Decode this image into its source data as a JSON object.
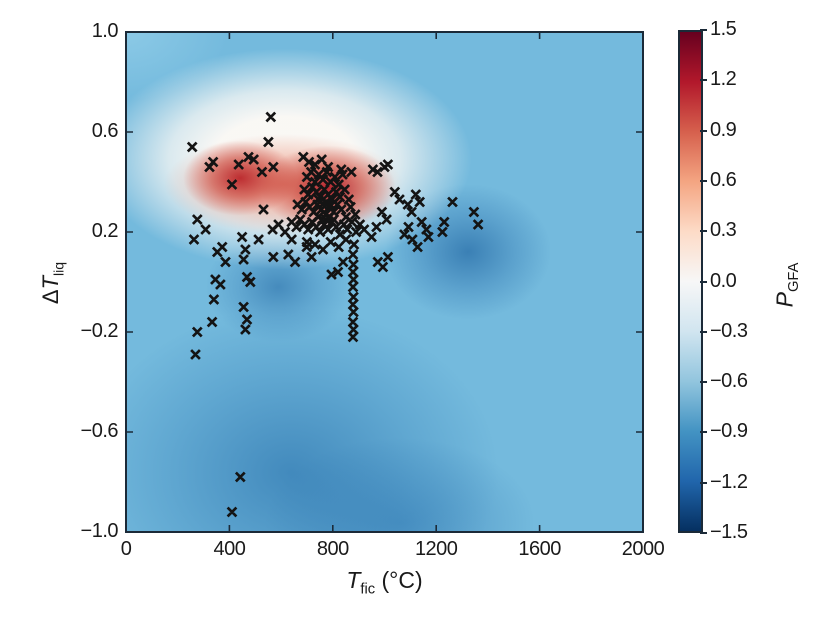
{
  "figure": {
    "kind": "matplotlib-style scientific figure",
    "background": "#ffffff"
  },
  "colors": {
    "plot_base_blue": "#74badd",
    "marker": "#141414",
    "frame": "#1b2a38",
    "text": "#1a1a1a"
  },
  "chart_data": {
    "type": "heatmap",
    "subtype": "interpolated 2D field with scatter overlay (x markers)",
    "title": "",
    "xlabel": {
      "symbol": "T",
      "sub": "fic",
      "unit": " (°C)"
    },
    "ylabel": {
      "prefix": "Δ",
      "symbol": "T",
      "sub": "liq"
    },
    "xlim": [
      0,
      2000
    ],
    "ylim": [
      -1.0,
      1.0
    ],
    "grid": false,
    "legend": "none",
    "xticks": [
      {
        "v": 0,
        "label": "0"
      },
      {
        "v": 400,
        "label": "400"
      },
      {
        "v": 800,
        "label": "800"
      },
      {
        "v": 1200,
        "label": "1200"
      },
      {
        "v": 1600,
        "label": "1600"
      },
      {
        "v": 2000,
        "label": "2000"
      }
    ],
    "yticks": [
      {
        "v": 1.0,
        "label": "1.0"
      },
      {
        "v": 0.6,
        "label": "0.6"
      },
      {
        "v": 0.2,
        "label": "0.2"
      },
      {
        "v": -0.2,
        "label": "−0.2"
      },
      {
        "v": -0.6,
        "label": "−0.6"
      },
      {
        "v": -1.0,
        "label": "−1.0"
      }
    ],
    "colorbar": {
      "symbol": "P",
      "sub": "GFA",
      "lim": [
        -1.5,
        1.5
      ],
      "position": "right",
      "colormap": "RdBu_r (red = high P_GFA, white = 0, blue = low P_GFA)",
      "ticks": [
        {
          "v": 1.5,
          "label": "1.5"
        },
        {
          "v": 1.2,
          "label": "1.2"
        },
        {
          "v": 0.9,
          "label": "0.9"
        },
        {
          "v": 0.6,
          "label": "0.6"
        },
        {
          "v": 0.3,
          "label": "0.3"
        },
        {
          "v": 0.0,
          "label": "0.0"
        },
        {
          "v": -0.3,
          "label": "−0.3"
        },
        {
          "v": -0.6,
          "label": "−0.6"
        },
        {
          "v": -0.9,
          "label": "−0.9"
        },
        {
          "v": -1.2,
          "label": "−1.2"
        },
        {
          "v": -1.5,
          "label": "−1.5"
        }
      ],
      "stops": [
        "#67001f",
        "#b2182b",
        "#d6604d",
        "#f4a582",
        "#fddbc7",
        "#f7f7f7",
        "#d1e5f0",
        "#92c5de",
        "#4393c3",
        "#2166ac",
        "#053061"
      ]
    },
    "field_description": "Red high-P_GFA blob centered near T_fic 450-1000 C at dT_liq 0.3-0.5 surrounded by white P=0 halo; dark-blue low-P lobes below the cluster (T 250-550, dT -0.2..0.1), right of it (T 1250-1500, dT 0-0.3) and across the lower-left quadrant; uniform light blue (~-0.5) elsewhere",
    "points": [
      [
        256,
        0.54
      ],
      [
        323,
        0.46
      ],
      [
        337,
        0.48
      ],
      [
        436,
        0.47
      ],
      [
        474,
        0.5
      ],
      [
        494,
        0.49
      ],
      [
        410,
        0.39
      ],
      [
        551,
        0.56
      ],
      [
        560,
        0.66
      ],
      [
        570,
        0.46
      ],
      [
        526,
        0.44
      ],
      [
        686,
        0.5
      ],
      [
        708,
        0.48
      ],
      [
        731,
        0.47
      ],
      [
        757,
        0.49
      ],
      [
        782,
        0.46
      ],
      [
        833,
        0.45
      ],
      [
        872,
        0.44
      ],
      [
        955,
        0.45
      ],
      [
        973,
        0.44
      ],
      [
        1000,
        0.46
      ],
      [
        1013,
        0.47
      ],
      [
        700,
        0.42
      ],
      [
        716,
        0.44
      ],
      [
        731,
        0.4
      ],
      [
        746,
        0.43
      ],
      [
        762,
        0.41
      ],
      [
        777,
        0.44
      ],
      [
        792,
        0.4
      ],
      [
        808,
        0.42
      ],
      [
        823,
        0.39
      ],
      [
        838,
        0.43
      ],
      [
        690,
        0.37
      ],
      [
        705,
        0.35
      ],
      [
        721,
        0.38
      ],
      [
        736,
        0.36
      ],
      [
        751,
        0.34
      ],
      [
        767,
        0.37
      ],
      [
        782,
        0.35
      ],
      [
        797,
        0.33
      ],
      [
        813,
        0.36
      ],
      [
        828,
        0.34
      ],
      [
        846,
        0.37
      ],
      [
        862,
        0.33
      ],
      [
        664,
        0.31
      ],
      [
        680,
        0.29
      ],
      [
        695,
        0.32
      ],
      [
        710,
        0.3
      ],
      [
        726,
        0.28
      ],
      [
        741,
        0.31
      ],
      [
        756,
        0.29
      ],
      [
        772,
        0.27
      ],
      [
        787,
        0.3
      ],
      [
        803,
        0.28
      ],
      [
        818,
        0.31
      ],
      [
        833,
        0.29
      ],
      [
        851,
        0.26
      ],
      [
        869,
        0.3
      ],
      [
        887,
        0.27
      ],
      [
        744,
        0.26
      ],
      [
        758,
        0.25
      ],
      [
        773,
        0.25
      ],
      [
        788,
        0.26
      ],
      [
        804,
        0.25
      ],
      [
        760,
        0.31
      ],
      [
        775,
        0.32
      ],
      [
        790,
        0.31
      ],
      [
        806,
        0.32
      ],
      [
        745,
        0.33
      ],
      [
        641,
        0.24
      ],
      [
        659,
        0.22
      ],
      [
        674,
        0.25
      ],
      [
        690,
        0.23
      ],
      [
        705,
        0.21
      ],
      [
        720,
        0.24
      ],
      [
        736,
        0.22
      ],
      [
        751,
        0.2
      ],
      [
        767,
        0.23
      ],
      [
        782,
        0.21
      ],
      [
        797,
        0.24
      ],
      [
        813,
        0.22
      ],
      [
        828,
        0.19
      ],
      [
        843,
        0.23
      ],
      [
        856,
        0.21
      ],
      [
        874,
        0.24
      ],
      [
        890,
        0.2
      ],
      [
        905,
        0.23
      ],
      [
        921,
        0.21
      ],
      [
        700,
        0.16
      ],
      [
        731,
        0.15
      ],
      [
        762,
        0.13
      ],
      [
        792,
        0.16
      ],
      [
        823,
        0.14
      ],
      [
        851,
        0.17
      ],
      [
        882,
        0.15
      ],
      [
        641,
        0.17
      ],
      [
        615,
        0.2
      ],
      [
        590,
        0.23
      ],
      [
        567,
        0.21
      ],
      [
        1040,
        0.36
      ],
      [
        1058,
        0.33
      ],
      [
        1077,
        0.19
      ],
      [
        1090,
        0.31
      ],
      [
        1105,
        0.28
      ],
      [
        1121,
        0.35
      ],
      [
        1136,
        0.32
      ],
      [
        1093,
        0.22
      ],
      [
        1108,
        0.17
      ],
      [
        1128,
        0.14
      ],
      [
        1144,
        0.24
      ],
      [
        1162,
        0.21
      ],
      [
        1224,
        0.2
      ],
      [
        1231,
        0.24
      ],
      [
        1263,
        0.32
      ],
      [
        1346,
        0.28
      ],
      [
        1362,
        0.23
      ],
      [
        1170,
        0.18
      ],
      [
        990,
        0.28
      ],
      [
        1008,
        0.25
      ],
      [
        969,
        0.22
      ],
      [
        950,
        0.18
      ],
      [
        570,
        0.1
      ],
      [
        628,
        0.11
      ],
      [
        654,
        0.08
      ],
      [
        699,
        0.14
      ],
      [
        718,
        0.1
      ],
      [
        795,
        0.03
      ],
      [
        820,
        0.04
      ],
      [
        840,
        0.08
      ],
      [
        974,
        0.08
      ],
      [
        994,
        0.06
      ],
      [
        1013,
        0.1
      ],
      [
        276,
        0.25
      ],
      [
        308,
        0.21
      ],
      [
        263,
        0.17
      ],
      [
        353,
        0.12
      ],
      [
        372,
        0.14
      ],
      [
        385,
        0.08
      ],
      [
        346,
        0.01
      ],
      [
        365,
        -0.01
      ],
      [
        449,
        0.18
      ],
      [
        462,
        0.13
      ],
      [
        455,
        0.09
      ],
      [
        468,
        0.02
      ],
      [
        481,
        0.0
      ],
      [
        513,
        0.17
      ],
      [
        532,
        0.29
      ],
      [
        340,
        -0.07
      ],
      [
        455,
        -0.1
      ],
      [
        468,
        -0.15
      ],
      [
        462,
        -0.19
      ],
      [
        276,
        -0.2
      ],
      [
        333,
        -0.16
      ],
      [
        269,
        -0.29
      ],
      [
        878,
        0.11
      ],
      [
        880,
        0.07
      ],
      [
        878,
        0.04
      ],
      [
        880,
        0.01
      ],
      [
        878,
        -0.02
      ],
      [
        880,
        -0.06
      ],
      [
        878,
        -0.09
      ],
      [
        880,
        -0.12
      ],
      [
        878,
        -0.16
      ],
      [
        880,
        -0.19
      ],
      [
        878,
        -0.22
      ],
      [
        442,
        -0.78
      ],
      [
        410,
        -0.92
      ]
    ]
  }
}
